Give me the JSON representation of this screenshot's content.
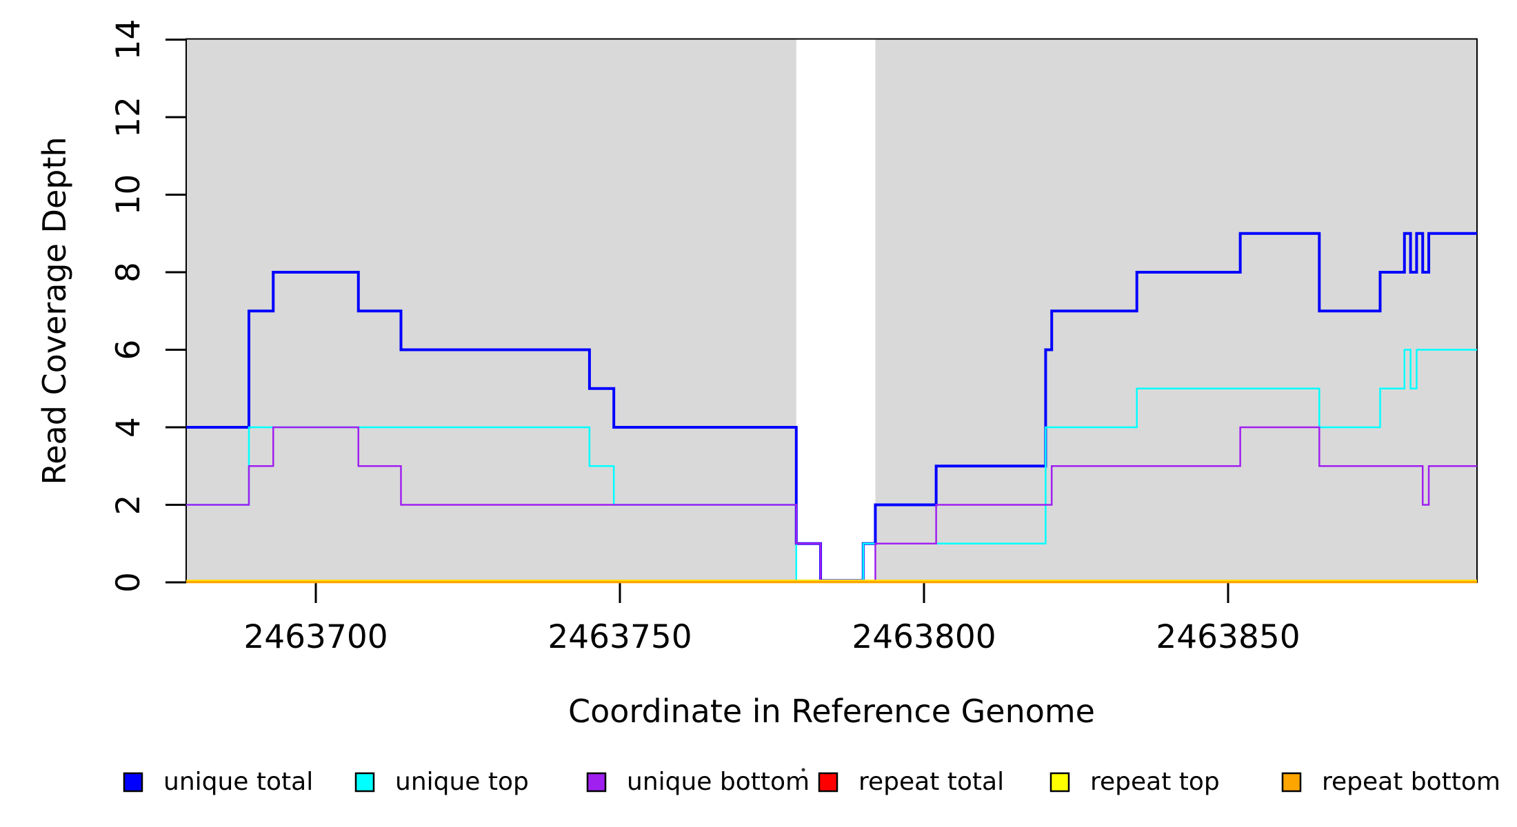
{
  "chart_data": {
    "type": "line",
    "subtype": "step-coverage-plot",
    "title": "",
    "xlabel": "Coordinate in Reference Genome",
    "ylabel": "Read Coverage Depth",
    "x_domain": [
      2463678.7,
      2463890.9
    ],
    "ylim": [
      0,
      14
    ],
    "x_ticks": [
      2463700,
      2463750,
      2463800,
      2463850
    ],
    "y_ticks": [
      0,
      2,
      4,
      6,
      8,
      10,
      12,
      14
    ],
    "grid": false,
    "plot_bg_color": "#ffffff",
    "region_color": "#D9D9D9",
    "background_regions": [
      {
        "name": "unique-region-left",
        "x_start": 2463678.7,
        "x_end": 2463779
      },
      {
        "name": "unique-region-right",
        "x_start": 2463792,
        "x_end": 2463890.9
      }
    ],
    "series": [
      {
        "name": "unique total",
        "color": "#0000FF",
        "line_width": 4,
        "steps": [
          [
            2463678.7,
            4
          ],
          [
            2463689,
            7
          ],
          [
            2463693,
            8
          ],
          [
            2463707,
            7
          ],
          [
            2463714,
            6
          ],
          [
            2463745,
            5
          ],
          [
            2463749,
            4
          ],
          [
            2463779,
            1
          ],
          [
            2463783,
            0
          ],
          [
            2463790,
            1
          ],
          [
            2463792,
            2
          ],
          [
            2463802,
            3
          ],
          [
            2463820,
            6
          ],
          [
            2463821,
            7
          ],
          [
            2463835,
            8
          ],
          [
            2463852,
            9
          ],
          [
            2463865,
            7
          ],
          [
            2463875,
            8
          ],
          [
            2463879,
            9
          ],
          [
            2463880,
            8
          ],
          [
            2463881,
            9
          ],
          [
            2463882,
            8
          ],
          [
            2463883,
            9
          ]
        ]
      },
      {
        "name": "unique top",
        "color": "#00FFFF",
        "line_width": 2.5,
        "steps": [
          [
            2463678.7,
            2
          ],
          [
            2463689,
            4
          ],
          [
            2463745,
            3
          ],
          [
            2463749,
            2
          ],
          [
            2463779,
            0
          ],
          [
            2463790,
            1
          ],
          [
            2463820,
            4
          ],
          [
            2463835,
            5
          ],
          [
            2463865,
            4
          ],
          [
            2463875,
            5
          ],
          [
            2463879,
            6
          ],
          [
            2463880,
            5
          ],
          [
            2463881,
            6
          ]
        ]
      },
      {
        "name": "unique bottom",
        "color": "#A020F0",
        "line_width": 2.5,
        "steps": [
          [
            2463678.7,
            2
          ],
          [
            2463689,
            3
          ],
          [
            2463693,
            4
          ],
          [
            2463707,
            3
          ],
          [
            2463714,
            2
          ],
          [
            2463779,
            1
          ],
          [
            2463783,
            0
          ],
          [
            2463792,
            1
          ],
          [
            2463802,
            2
          ],
          [
            2463821,
            3
          ],
          [
            2463852,
            4
          ],
          [
            2463865,
            3
          ],
          [
            2463882,
            2
          ],
          [
            2463883,
            3
          ]
        ]
      },
      {
        "name": "repeat total",
        "color": "#FF0000",
        "line_width": 2.5,
        "steps": [
          [
            2463678.7,
            0
          ]
        ]
      },
      {
        "name": "repeat top",
        "color": "#FFFF00",
        "line_width": 2.5,
        "steps": [
          [
            2463678.7,
            0
          ]
        ]
      },
      {
        "name": "repeat bottom",
        "color": "#FFA500",
        "line_width": 3.5,
        "steps": [
          [
            2463678.7,
            0
          ]
        ]
      }
    ],
    "legend": {
      "position": "bottom",
      "stray_mark": "·",
      "entries": [
        {
          "label": "unique total",
          "color": "#0000FF"
        },
        {
          "label": "unique top",
          "color": "#00FFFF"
        },
        {
          "label": "unique bottom",
          "color": "#A020F0"
        },
        {
          "label": "repeat total",
          "color": "#FF0000"
        },
        {
          "label": "repeat top",
          "color": "#FFFF00"
        },
        {
          "label": "repeat bottom",
          "color": "#FFA500"
        }
      ]
    }
  }
}
